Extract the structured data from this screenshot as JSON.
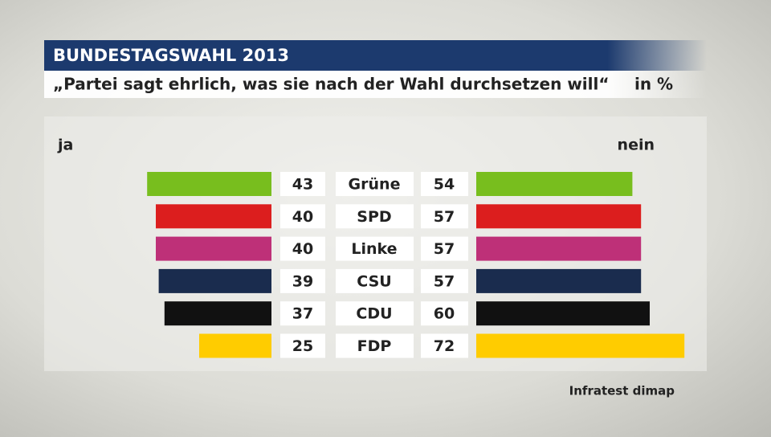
{
  "chart_data": {
    "type": "diverging_bar",
    "title": "BUNDESTAGSWAHL 2013",
    "subtitle": "„Partei sagt ehrlich, was sie nach der Wahl durchsetzen will“",
    "unit": "in %",
    "source": "Infratest dimap",
    "categories": [
      "Grüne",
      "SPD",
      "Linke",
      "CSU",
      "CDU",
      "FDP"
    ],
    "colors": [
      "#78be1e",
      "#dc1e1e",
      "#be3078",
      "#1a2c4e",
      "#111111",
      "#ffcc00"
    ],
    "series": [
      {
        "name": "ja",
        "values": [
          43,
          40,
          40,
          39,
          37,
          25
        ]
      },
      {
        "name": "nein",
        "values": [
          54,
          57,
          57,
          57,
          60,
          72
        ]
      }
    ]
  }
}
